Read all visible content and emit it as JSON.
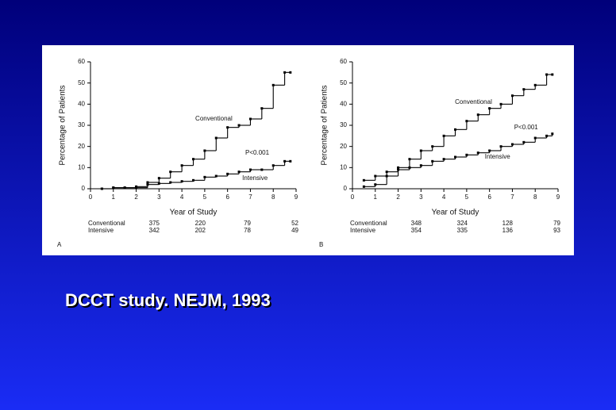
{
  "chart_data": [
    {
      "type": "step",
      "panel": "A",
      "xlabel": "Year of Study",
      "ylabel": "Percentage of Patients",
      "annotation": "P<0.001",
      "xlim": [
        0,
        9
      ],
      "ylim": [
        0,
        60
      ],
      "xticks": [
        0,
        1,
        2,
        3,
        4,
        5,
        6,
        7,
        8,
        9
      ],
      "yticks": [
        0,
        10,
        20,
        30,
        40,
        50,
        60
      ],
      "x": [
        0.5,
        1,
        1.5,
        2,
        2.5,
        3,
        3.5,
        4,
        4.5,
        5,
        5.5,
        6,
        6.5,
        7,
        7.5,
        8,
        8.5,
        8.75
      ],
      "series": [
        {
          "name": "Conventional",
          "color": "#000000",
          "values": [
            0,
            0.5,
            0.5,
            1,
            3,
            5,
            8,
            11,
            14,
            18,
            24,
            29,
            30,
            33,
            38,
            49,
            55,
            55
          ]
        },
        {
          "name": "Intensive",
          "color": "#000000",
          "values": [
            0,
            0.5,
            0.5,
            0.5,
            2,
            2.5,
            3,
            3.5,
            4,
            5.5,
            6,
            7,
            8,
            9,
            9,
            11,
            13,
            13
          ]
        }
      ],
      "risk_counts": [
        [
          375,
          220,
          79,
          52
        ],
        [
          342,
          202,
          78,
          49
        ]
      ]
    },
    {
      "type": "step",
      "panel": "B",
      "xlabel": "Year of Study",
      "ylabel": "Percentage of Patients",
      "annotation": "P<0.001",
      "xlim": [
        0,
        9
      ],
      "ylim": [
        0,
        60
      ],
      "xticks": [
        0,
        1,
        2,
        3,
        4,
        5,
        6,
        7,
        8,
        9
      ],
      "yticks": [
        0,
        10,
        20,
        30,
        40,
        50,
        60
      ],
      "x": [
        0.5,
        1,
        1.5,
        2,
        2.5,
        3,
        3.5,
        4,
        4.5,
        5,
        5.5,
        6,
        6.5,
        7,
        7.5,
        8,
        8.5,
        8.75
      ],
      "series": [
        {
          "name": "Conventional",
          "color": "#000000",
          "values": [
            1,
            2,
            6,
            10,
            14,
            18,
            20,
            25,
            28,
            32,
            35,
            38,
            40,
            44,
            47,
            49,
            54,
            54
          ]
        },
        {
          "name": "Intensive",
          "color": "#000000",
          "values": [
            4,
            6,
            8,
            9,
            10,
            11,
            13,
            14,
            15,
            16,
            17,
            18,
            20,
            21,
            22,
            24,
            25,
            26
          ]
        }
      ],
      "risk_counts": [
        [
          348,
          324,
          128,
          79
        ],
        [
          354,
          335,
          136,
          93
        ]
      ]
    }
  ],
  "caption": "DCCT study. NEJM, 1993"
}
